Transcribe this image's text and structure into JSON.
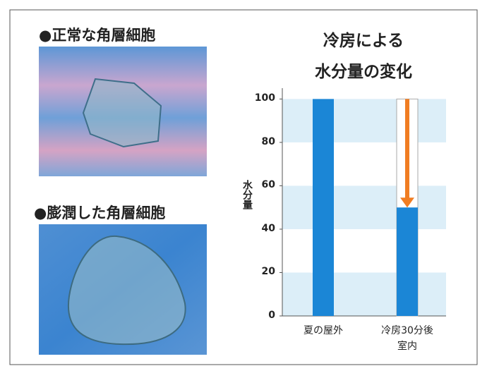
{
  "photos": [
    {
      "label": "●正常な角層細胞"
    },
    {
      "label": "●膨潤した角層細胞"
    }
  ],
  "chart_data": {
    "type": "bar",
    "title": "冷房による\n水分量の変化",
    "y_label": "水分量",
    "categories": [
      "夏の屋外",
      "冷房30分後\n室内"
    ],
    "values": [
      100,
      50
    ],
    "color": "#1b86d6",
    "ylim": [
      0,
      105
    ],
    "yticks": [
      0,
      20,
      40,
      60,
      80,
      100
    ],
    "band_color": "#dceef8",
    "arrow_color": "#f07d22"
  }
}
